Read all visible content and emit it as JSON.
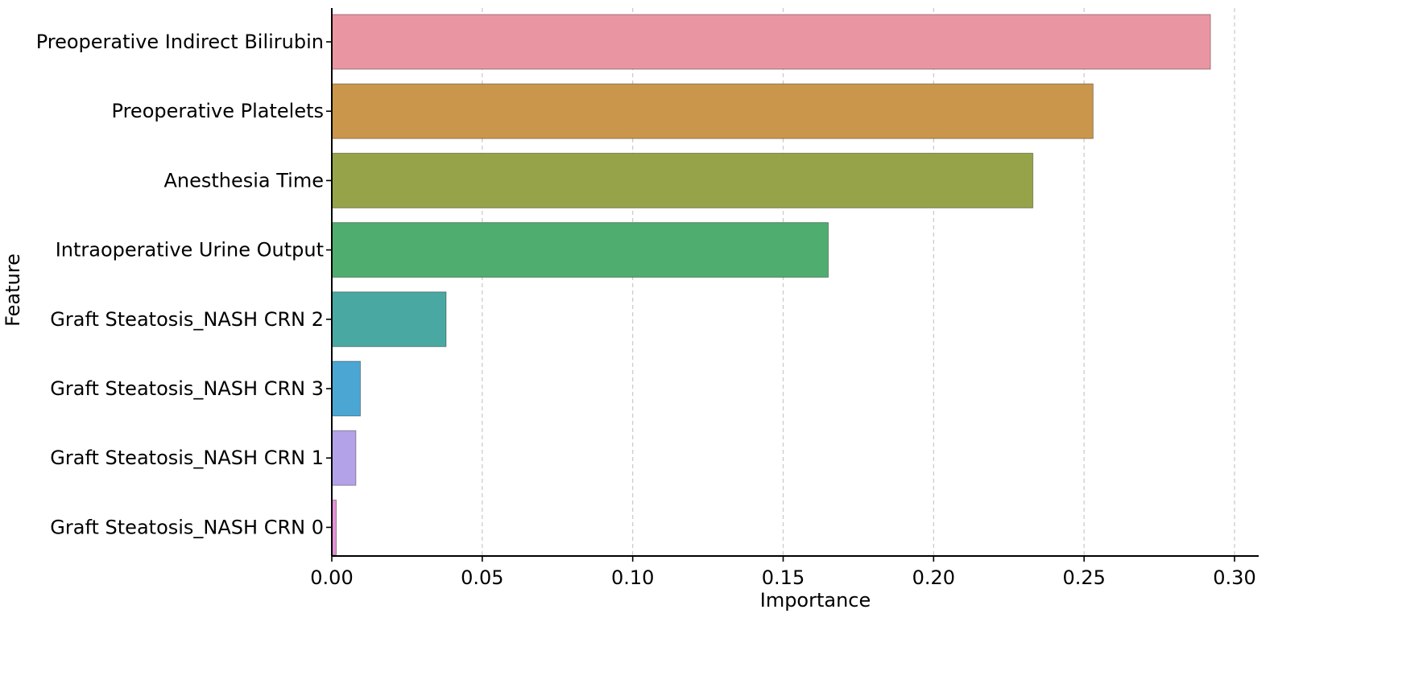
{
  "chart_data": {
    "type": "bar",
    "orientation": "horizontal",
    "categories": [
      "Preoperative Indirect Bilirubin",
      "Preoperative Platelets",
      "Anesthesia Time",
      "Intraoperative Urine Output",
      "Graft Steatosis_NASH CRN 2",
      "Graft Steatosis_NASH CRN 3",
      "Graft Steatosis_NASH CRN 1",
      "Graft Steatosis_NASH CRN 0"
    ],
    "values": [
      0.292,
      0.253,
      0.233,
      0.165,
      0.038,
      0.0095,
      0.008,
      0.0015
    ],
    "colors": [
      "#ea96a2",
      "#c9964b",
      "#97a348",
      "#4ead6f",
      "#4aa8a2",
      "#4ca6d3",
      "#b4a2e8",
      "#e391d6"
    ],
    "xlabel": "Importance",
    "ylabel": "Feature",
    "xlim": [
      0,
      0.3
    ],
    "xticks": [
      0.0,
      0.05,
      0.1,
      0.15,
      0.2,
      0.25,
      0.3
    ],
    "xtick_labels": [
      "0.00",
      "0.05",
      "0.10",
      "0.15",
      "0.20",
      "0.25",
      "0.30"
    ],
    "grid": "x-dashed",
    "legend": "none"
  }
}
